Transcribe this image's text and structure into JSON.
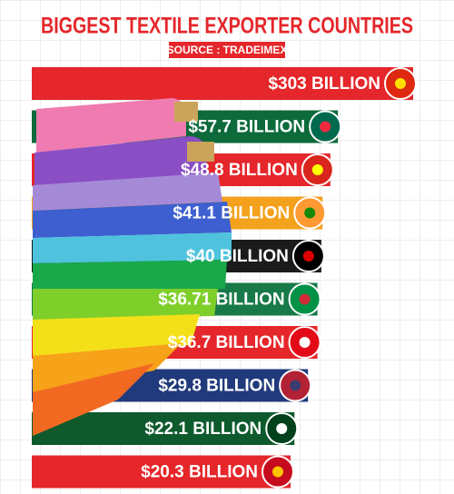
{
  "chart_data": {
    "type": "bar",
    "orientation": "horizontal",
    "log_scale": true,
    "title": "BIGGEST TEXTILE EXPORTER COUNTRIES",
    "subtitle": "SOURCE : TRADEIMEX",
    "values": [
      303,
      57.7,
      48.8,
      41.1,
      40,
      36.71,
      36.7,
      29.8,
      22.1,
      20.3
    ],
    "value_labels": [
      "$303 BILLION",
      "$57.7 BILLION",
      "$48.8 BILLION",
      "$41.1 BILLION",
      "$40 BILLION",
      "$36.71 BILLION",
      "$36.7 BILLION",
      "$29.8 BILLION",
      "$22.1 BILLION",
      "$20.3 BILLION"
    ],
    "colors": [
      "#e5262a",
      "#0d6a3a",
      "#e5262a",
      "#f4a11d",
      "#1b1b1b",
      "#187a48",
      "#e5262a",
      "#213a7c",
      "#0e5a2c",
      "#e5262a"
    ]
  }
}
